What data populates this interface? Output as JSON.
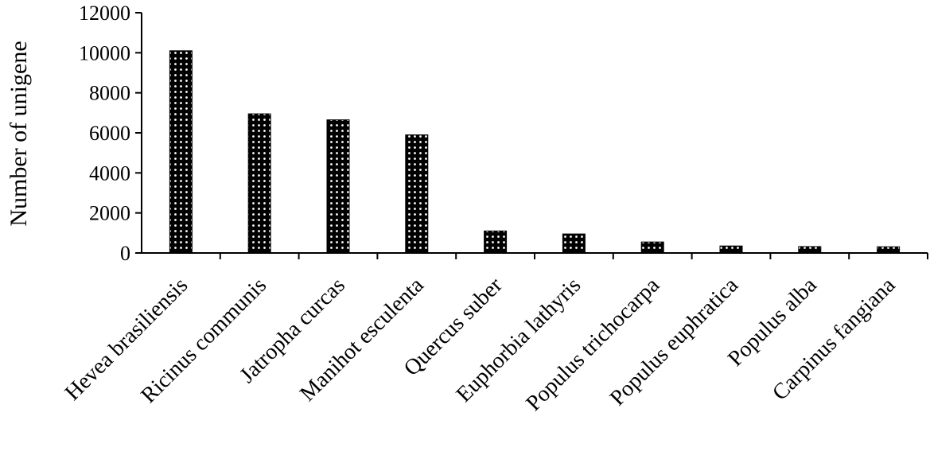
{
  "chart_data": {
    "type": "bar",
    "title": "",
    "xlabel": "",
    "ylabel": "Number of unigene",
    "ylim": [
      0,
      12000
    ],
    "yticks": [
      0,
      2000,
      4000,
      6000,
      8000,
      10000,
      12000
    ],
    "grid": false,
    "categories": [
      "Hevea brasiliensis",
      "Ricinus communis",
      "Jatropha curcas",
      "Manihot esculenta",
      "Quercus suber",
      "Euphorbia lathyris",
      "Populus trichocarpa",
      "Populus euphratica",
      "Populus alba",
      "Carpinus fangiana"
    ],
    "values": [
      10100,
      6950,
      6650,
      5900,
      1100,
      950,
      550,
      350,
      320,
      310
    ],
    "bar_color": "#000000",
    "dot_color": "#ffffff"
  }
}
